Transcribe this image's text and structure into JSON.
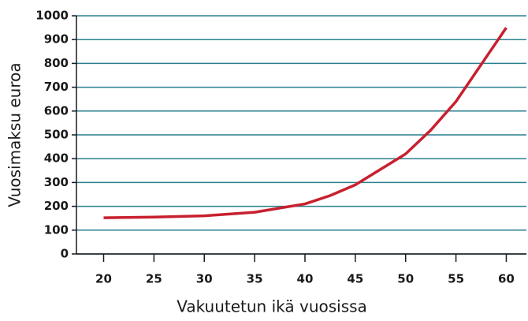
{
  "chart_data": {
    "type": "line",
    "x_label": "Vakuutetun ikä vuosissa",
    "y_label": "Vuosimaksu euroa",
    "x": [
      20,
      25,
      30,
      35,
      40,
      42.5,
      45,
      50,
      52.5,
      55,
      60
    ],
    "series": [
      {
        "name": null,
        "color": "#c8202f",
        "values": [
          152,
          155,
          160,
          175,
          210,
          245,
          290,
          420,
          520,
          640,
          950
        ]
      }
    ],
    "xlim": [
      17.3,
      62
    ],
    "xticks": [
      20,
      25,
      30,
      35,
      40,
      45,
      50,
      55,
      60
    ],
    "ylim": [
      0,
      1000
    ],
    "yticks": [
      0,
      100,
      200,
      300,
      400,
      500,
      600,
      700,
      800,
      900,
      1000
    ],
    "grid": true,
    "grid_color": "#2a7f8f"
  }
}
